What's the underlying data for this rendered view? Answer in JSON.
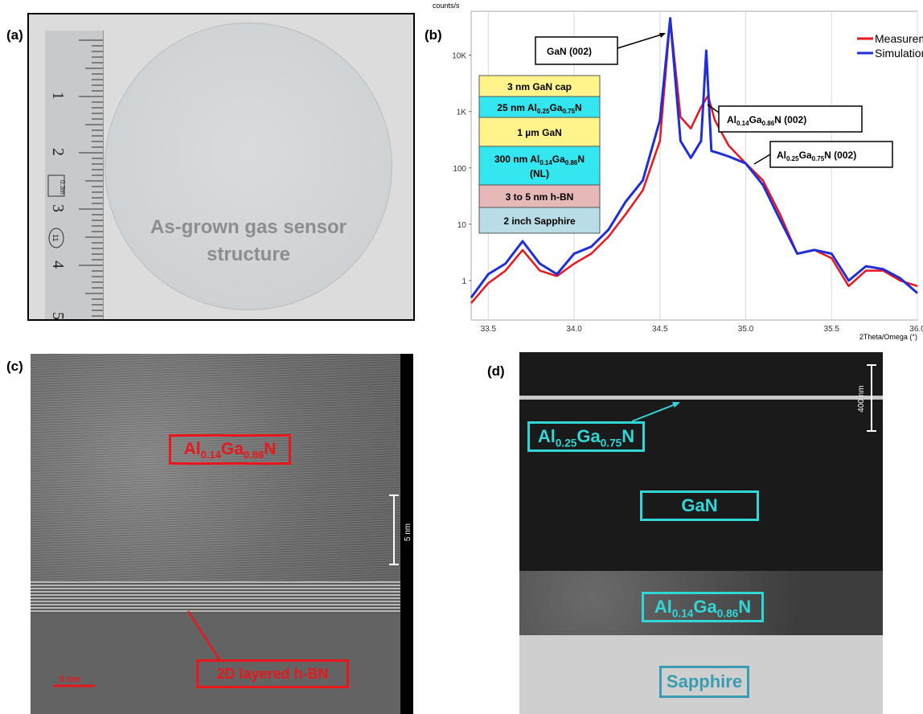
{
  "panel_labels": {
    "a": "(a)",
    "b": "(b)",
    "c": "(c)",
    "d": "(d)"
  },
  "panel_a": {
    "caption_line1": "As-grown gas sensor",
    "caption_line2": "structure",
    "ruler_numbers": [
      "1",
      "2",
      "3",
      "4",
      "5"
    ],
    "ruler_badge_1": "0.3m",
    "ruler_badge_2": "11"
  },
  "stack": {
    "layers": [
      {
        "text": "3 nm GaN cap",
        "color": "#fff38c"
      },
      {
        "text": "25 nm Al0.25Ga0.75N",
        "color": "#33e6f0"
      },
      {
        "text": "1 µm GaN",
        "color": "#fff38c"
      },
      {
        "text": "300 nm Al0.14Ga0.86N (NL)",
        "color": "#33e6f0"
      },
      {
        "text": "3 to 5 nm h-BN",
        "color": "#e6b8b8"
      },
      {
        "text": "2 inch Sapphire",
        "color": "#b8dde6"
      }
    ]
  },
  "chart_data": {
    "type": "line",
    "ylabel": "counts/s",
    "xlabel": "2Theta/Omega (°)",
    "scale": "log-y",
    "xlim": [
      33.4,
      36.0
    ],
    "ylim": [
      0.2,
      60000
    ],
    "x_ticks": [
      "33.5",
      "34.0",
      "34.5",
      "35.0",
      "35.5",
      "36.0"
    ],
    "y_ticks": [
      "1",
      "10",
      "100",
      "1K",
      "10K"
    ],
    "legend": {
      "position": "top-right"
    },
    "series": [
      {
        "name": "Measurement",
        "color": "#e8171c",
        "x": [
          33.4,
          33.5,
          33.6,
          33.7,
          33.8,
          33.9,
          34.0,
          34.1,
          34.2,
          34.3,
          34.4,
          34.5,
          34.56,
          34.62,
          34.68,
          34.74,
          34.78,
          34.82,
          34.9,
          35.0,
          35.1,
          35.2,
          35.3,
          35.4,
          35.5,
          35.6,
          35.7,
          35.8,
          35.9,
          36.0
        ],
        "y": [
          0.4,
          0.9,
          1.5,
          3.5,
          1.5,
          1.2,
          2.0,
          3.0,
          6.0,
          15,
          40,
          300,
          45000,
          800,
          500,
          1200,
          1900,
          700,
          250,
          120,
          60,
          15,
          3,
          3.5,
          2.5,
          0.8,
          1.5,
          1.5,
          1.0,
          0.8
        ]
      },
      {
        "name": "Simulation",
        "color": "#1f2ed6",
        "x": [
          33.4,
          33.5,
          33.6,
          33.7,
          33.8,
          33.9,
          34.0,
          34.1,
          34.2,
          34.3,
          34.4,
          34.5,
          34.56,
          34.62,
          34.68,
          34.74,
          34.77,
          34.8,
          34.85,
          34.9,
          35.0,
          35.1,
          35.2,
          35.3,
          35.4,
          35.5,
          35.6,
          35.7,
          35.8,
          35.9,
          36.0
        ],
        "y": [
          0.5,
          1.3,
          2.0,
          5.0,
          2.0,
          1.3,
          3.0,
          4.0,
          8.0,
          25,
          60,
          700,
          45000,
          300,
          150,
          300,
          12000,
          200,
          180,
          160,
          120,
          50,
          12,
          3,
          3.5,
          3.0,
          1.0,
          1.8,
          1.6,
          1.1,
          0.6
        ]
      }
    ],
    "annotations": [
      {
        "text": "GaN (002)",
        "x": 34.56,
        "y": 45000
      },
      {
        "text": "Al0.14Ga0.86N (002)",
        "x": 34.78,
        "y": 1900
      },
      {
        "text": "Al0.25Ga0.75N (002)",
        "x": 35.0,
        "y": 150
      }
    ]
  },
  "panel_c": {
    "label_top": "Al0.14Ga0.86N",
    "label_bottom": "2D layered h-BN",
    "scale_right": "5 nm",
    "scale_left": "5 nm"
  },
  "panel_d": {
    "label_algan25": "Al0.25Ga0.75N",
    "label_gan": "GaN",
    "label_algan14": "Al0.14Ga0.86N",
    "label_sapphire": "Sapphire",
    "scale": "400 nm"
  }
}
